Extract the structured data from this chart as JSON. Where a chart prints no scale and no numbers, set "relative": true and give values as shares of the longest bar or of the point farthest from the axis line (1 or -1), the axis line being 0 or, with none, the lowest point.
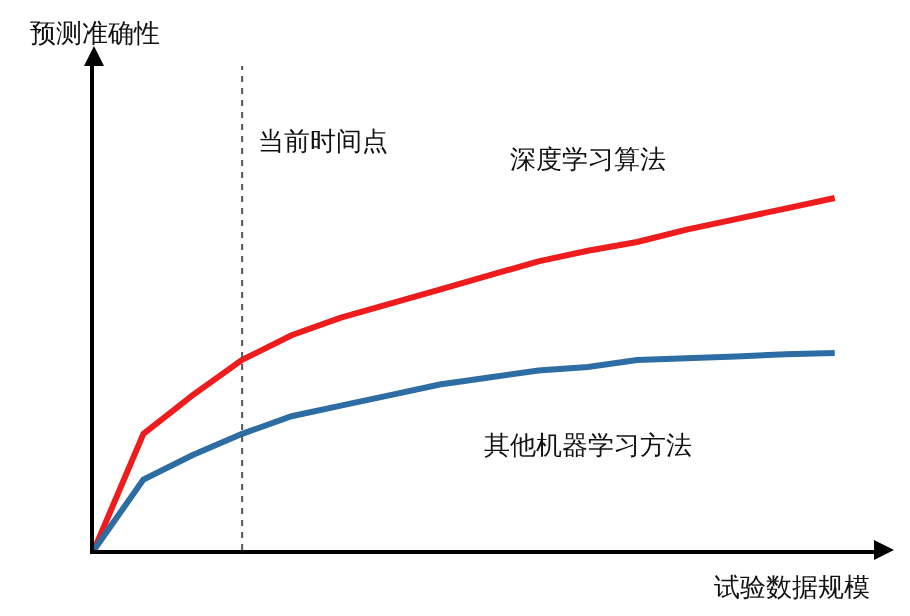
{
  "chart_data": {
    "type": "line",
    "relative": true,
    "xlabel": "试验数据规模",
    "annotations": [
      "预测准确性",
      "当前时间点"
    ],
    "categories": [
      null,
      null,
      null,
      null,
      null,
      null,
      null,
      null,
      null,
      null,
      null,
      null,
      null,
      null,
      null,
      null
    ],
    "series": [
      {
        "name": "深度学习算法",
        "color": "#ee1c1c",
        "values": [
          0,
          0.33,
          0.44,
          0.54,
          0.61,
          0.66,
          0.7,
          0.74,
          0.78,
          0.82,
          0.85,
          0.875,
          0.91,
          0.94,
          0.97,
          1
        ]
      },
      {
        "name": "其他机器学习方法",
        "color": "#2e6da4",
        "values": [
          0,
          0.2,
          0.27,
          0.33,
          0.38,
          0.41,
          0.44,
          0.47,
          0.49,
          0.51,
          0.52,
          0.54,
          0.545,
          0.55,
          0.556,
          0.56
        ]
      }
    ],
    "grid": false,
    "legend": false,
    "marker": "none"
  }
}
